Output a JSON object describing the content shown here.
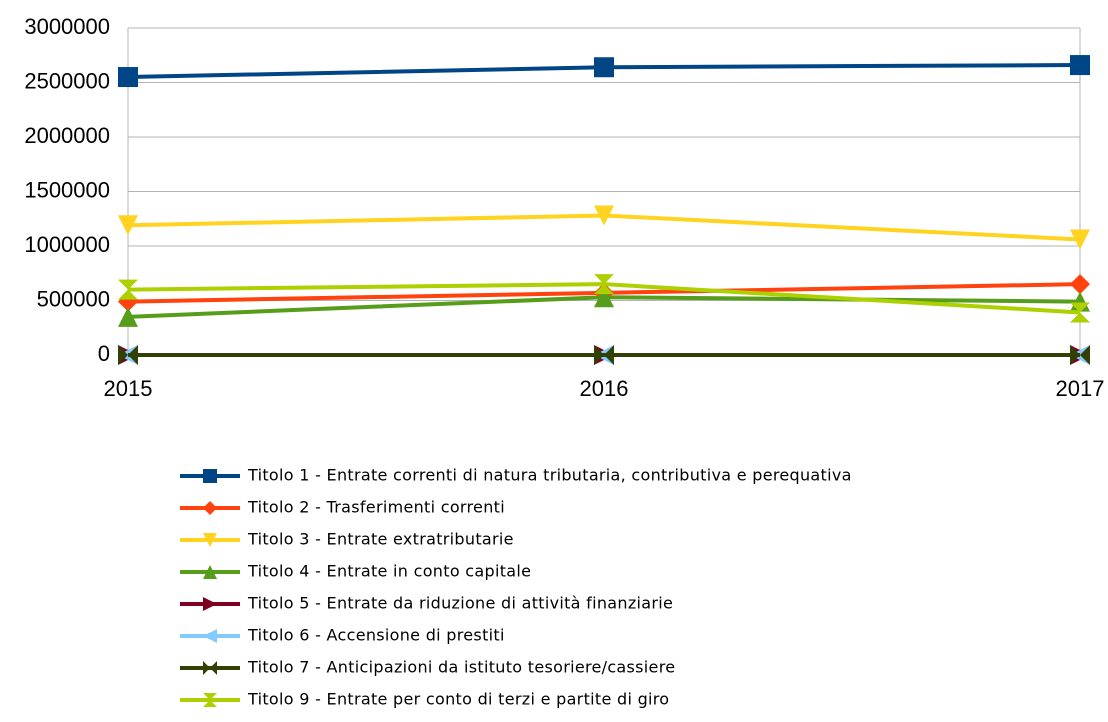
{
  "chart_data": {
    "type": "line",
    "categories": [
      "2015",
      "2016",
      "2017"
    ],
    "ylim": [
      0,
      3000000
    ],
    "yticks": [
      0,
      500000,
      1000000,
      1500000,
      2000000,
      2500000,
      3000000
    ],
    "grid": true,
    "legend": "bottom",
    "series": [
      {
        "name": "Titolo 1 - Entrate correnti di natura tributaria, contributiva e perequativa",
        "color": "#004586",
        "marker": "square",
        "values": [
          2550000,
          2640000,
          2660000
        ]
      },
      {
        "name": "Titolo 2 - Trasferimenti correnti",
        "color": "#ff420e",
        "marker": "diamond",
        "values": [
          490000,
          570000,
          650000
        ]
      },
      {
        "name": "Titolo 3 - Entrate extratributarie",
        "color": "#ffd320",
        "marker": "triangle-down",
        "values": [
          1190000,
          1280000,
          1060000
        ]
      },
      {
        "name": "Titolo 4 - Entrate in conto capitale",
        "color": "#579d1c",
        "marker": "triangle-up",
        "values": [
          350000,
          530000,
          490000
        ]
      },
      {
        "name": "Titolo 5 - Entrate da riduzione di attività finanziarie",
        "color": "#7e0021",
        "marker": "triangle-right",
        "values": [
          0,
          0,
          0
        ]
      },
      {
        "name": "Titolo 6 - Accensione di prestiti",
        "color": "#83caff",
        "marker": "triangle-left",
        "values": [
          0,
          0,
          0
        ]
      },
      {
        "name": "Titolo 7 - Anticipazioni da istituto tesoriere/cassiere",
        "color": "#314004",
        "marker": "bowtie",
        "values": [
          0,
          0,
          0
        ]
      },
      {
        "name": "Titolo 9 - Entrate per conto di terzi e partite di giro",
        "color": "#aecf00",
        "marker": "hourglass",
        "values": [
          600000,
          650000,
          390000
        ]
      }
    ]
  }
}
